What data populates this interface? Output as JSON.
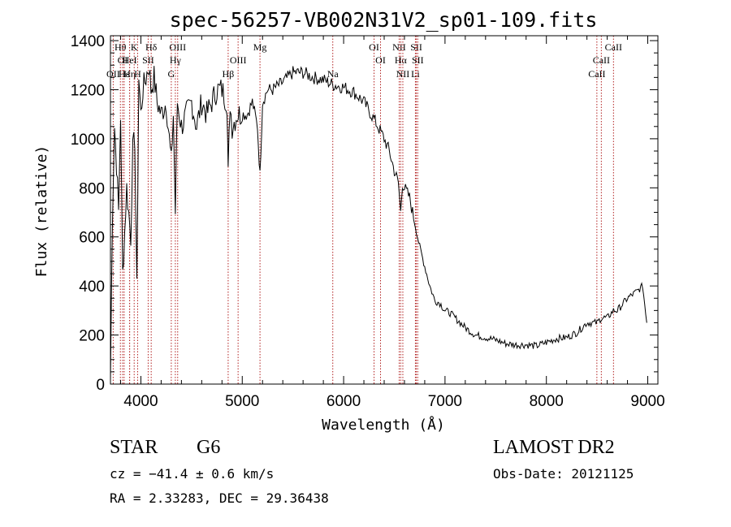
{
  "chart_data": {
    "type": "line",
    "title": "spec-56257-VB002N31V2_sp01-109.fits",
    "xlabel": "Wavelength (Å)",
    "ylabel": "Flux (relative)",
    "xlim": [
      3700,
      9100
    ],
    "ylim": [
      0,
      1420
    ],
    "x_ticks": [
      4000,
      5000,
      6000,
      7000,
      8000,
      9000
    ],
    "y_ticks": [
      0,
      200,
      400,
      600,
      800,
      1000,
      1200,
      1400
    ],
    "grid": false,
    "series": [
      {
        "x": [
          3700,
          3720,
          3740,
          3760,
          3780,
          3800,
          3820,
          3840,
          3860,
          3880,
          3900,
          3920,
          3940,
          3960,
          3980,
          4000,
          4020,
          4050,
          4080,
          4100,
          4130,
          4160,
          4200,
          4250,
          4300,
          4320,
          4340,
          4360,
          4400,
          4450,
          4500,
          4550,
          4600,
          4650,
          4700,
          4750,
          4800,
          4850,
          4861,
          4880,
          4900,
          4950,
          5000,
          5050,
          5100,
          5150,
          5175,
          5200,
          5250,
          5300,
          5400,
          5500,
          5600,
          5700,
          5800,
          5900,
          6000,
          6100,
          6200,
          6300,
          6400,
          6450,
          6500,
          6540,
          6563,
          6580,
          6600,
          6650,
          6700,
          6750,
          6800,
          6850,
          6900,
          6950,
          7000,
          7050,
          7100,
          7150,
          7200,
          7300,
          7400,
          7500,
          7600,
          7700,
          7800,
          7900,
          8000,
          8100,
          8200,
          8300,
          8400,
          8500,
          8542,
          8600,
          8662,
          8700,
          8800,
          8900,
          8950,
          8990
        ],
        "values": [
          20,
          700,
          1050,
          900,
          700,
          1100,
          450,
          620,
          800,
          700,
          600,
          950,
          1000,
          380,
          1250,
          1100,
          1200,
          1250,
          1300,
          1200,
          1250,
          1150,
          1100,
          1150,
          900,
          1100,
          700,
          1150,
          1050,
          1100,
          1150,
          1050,
          1150,
          1100,
          1150,
          1200,
          1200,
          1150,
          850,
          1150,
          1050,
          1100,
          1100,
          1100,
          1150,
          1050,
          850,
          1150,
          1200,
          1200,
          1230,
          1270,
          1270,
          1250,
          1240,
          1220,
          1210,
          1190,
          1150,
          1080,
          1000,
          950,
          870,
          820,
          700,
          820,
          800,
          760,
          660,
          560,
          480,
          400,
          340,
          330,
          300,
          290,
          270,
          250,
          230,
          200,
          190,
          180,
          165,
          160,
          160,
          155,
          170,
          185,
          190,
          210,
          250,
          250,
          270,
          270,
          300,
          300,
          350,
          380,
          400,
          250
        ]
      }
    ],
    "spectral_lines": [
      {
        "w": 3727,
        "label": "OII",
        "row": 3
      },
      {
        "w": 3798,
        "label": "Hθ",
        "row": 1
      },
      {
        "w": 3820,
        "label": "OI",
        "row": 2
      },
      {
        "w": 3835,
        "label": "Hε",
        "row": 3
      },
      {
        "w": 3889,
        "label": "HeI",
        "row": 2
      },
      {
        "w": 3889,
        "label": "Hη",
        "row": 3
      },
      {
        "w": 3934,
        "label": "K",
        "row": 1
      },
      {
        "w": 3968,
        "label": "H",
        "row": 3
      },
      {
        "w": 4072,
        "label": "SII",
        "row": 2
      },
      {
        "w": 4102,
        "label": "Hδ",
        "row": 1
      },
      {
        "w": 4300,
        "label": "G",
        "row": 3
      },
      {
        "w": 4340,
        "label": "Hγ",
        "row": 2
      },
      {
        "w": 4363,
        "label": "OIII",
        "row": 1
      },
      {
        "w": 4861,
        "label": "Hβ",
        "row": 3
      },
      {
        "w": 4959,
        "label": "OIII",
        "row": 2
      },
      {
        "w": 5175,
        "label": "Mg",
        "row": 1
      },
      {
        "w": 5893,
        "label": "Na",
        "row": 3
      },
      {
        "w": 6300,
        "label": "OI",
        "row": 1
      },
      {
        "w": 6364,
        "label": "OI",
        "row": 2
      },
      {
        "w": 6548,
        "label": "NII",
        "row": 1
      },
      {
        "w": 6563,
        "label": "Hα",
        "row": 2
      },
      {
        "w": 6584,
        "label": "NII",
        "row": 3
      },
      {
        "w": 6708,
        "label": "Li",
        "row": 3
      },
      {
        "w": 6717,
        "label": "SII",
        "row": 1
      },
      {
        "w": 6731,
        "label": "SII",
        "row": 2
      },
      {
        "w": 8498,
        "label": "CaII",
        "row": 3
      },
      {
        "w": 8542,
        "label": "CaII",
        "row": 2
      },
      {
        "w": 8662,
        "label": "CaII",
        "row": 1
      }
    ]
  },
  "info": {
    "object_class": "STAR",
    "subclass": "G6",
    "survey": "LAMOST DR2",
    "cz": "cz = −41.4 ± 0.6 km/s",
    "obs_date": "Obs-Date: 20121125",
    "coords": "RA =   2.33283, DEC =  29.36438"
  }
}
